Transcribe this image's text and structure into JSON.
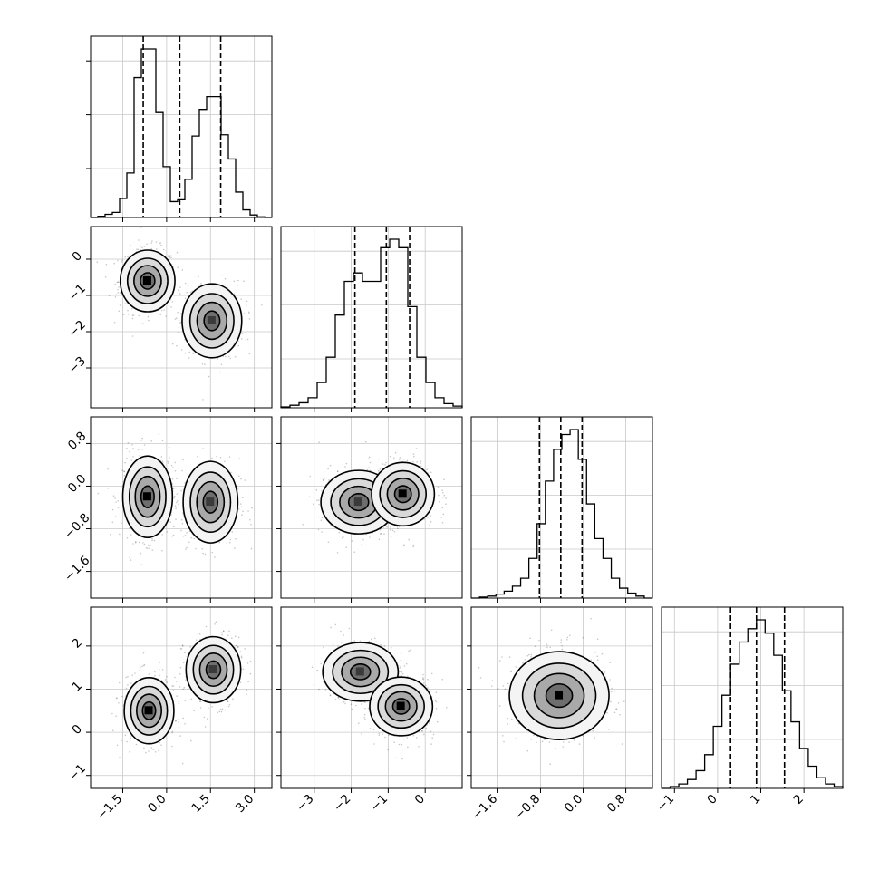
{
  "chart_data": [
    {
      "type": "histogram",
      "panel": "diag-0",
      "x_ticks": [
        "-1.5",
        "0.0",
        "1.5",
        "3.0"
      ],
      "xlim": [
        -2.6,
        3.6
      ],
      "quantiles": [
        -0.8,
        0.45,
        1.85
      ],
      "bins_x": [
        -2.6,
        3.6
      ],
      "counts": [
        0,
        2,
        5,
        8,
        30,
        70,
        220,
        265,
        265,
        165,
        80,
        25,
        28,
        60,
        128,
        170,
        190,
        190,
        130,
        92,
        40,
        12,
        4,
        1,
        0
      ]
    },
    {
      "type": "scatter",
      "panel": "x0-vs-x1",
      "x_ticks": [
        "-1.5",
        "0.0",
        "1.5",
        "3.0"
      ],
      "y_ticks": [
        "0",
        "-1",
        "-2",
        "-3"
      ],
      "xlim": [
        -2.6,
        3.6
      ],
      "ylim": [
        -4.1,
        0.9
      ],
      "clusters": [
        {
          "center": [
            -0.65,
            -0.6
          ],
          "spread": [
            0.55,
            0.5
          ],
          "density": "high"
        },
        {
          "center": [
            1.55,
            -1.7
          ],
          "spread": [
            0.6,
            0.6
          ],
          "density": "medium"
        }
      ]
    },
    {
      "type": "histogram",
      "panel": "diag-1",
      "x_ticks": [
        "-3",
        "-2",
        "-1",
        "0"
      ],
      "xlim": [
        -3.9,
        1.0
      ],
      "quantiles": [
        -1.9,
        -1.05,
        -0.42
      ],
      "counts": [
        1,
        3,
        6,
        12,
        30,
        60,
        110,
        150,
        160,
        150,
        150,
        190,
        200,
        190,
        120,
        60,
        30,
        12,
        5,
        2
      ]
    },
    {
      "type": "scatter",
      "panel": "x0-vs-x2",
      "x_ticks": [
        "-1.5",
        "0.0",
        "1.5",
        "3.0"
      ],
      "y_ticks": [
        "0.8",
        "0.0",
        "-0.8",
        "-1.6"
      ],
      "xlim": [
        -2.6,
        3.6
      ],
      "ylim": [
        -2.1,
        1.3
      ],
      "clusters": [
        {
          "center": [
            -0.65,
            -0.2
          ],
          "spread": [
            0.5,
            0.45
          ],
          "density": "high"
        },
        {
          "center": [
            1.5,
            -0.3
          ],
          "spread": [
            0.55,
            0.45
          ],
          "density": "medium"
        }
      ]
    },
    {
      "type": "scatter",
      "panel": "x1-vs-x2",
      "x_ticks": [
        "-3",
        "-2",
        "-1",
        "0"
      ],
      "y_ticks": [
        "0.8",
        "0.0",
        "-0.8",
        "-1.6"
      ],
      "xlim": [
        -3.9,
        1.0
      ],
      "ylim": [
        -2.1,
        1.3
      ],
      "clusters": [
        {
          "center": [
            -1.8,
            -0.3
          ],
          "spread": [
            0.6,
            0.35
          ],
          "density": "medium"
        },
        {
          "center": [
            -0.6,
            -0.15
          ],
          "spread": [
            0.5,
            0.35
          ],
          "density": "high"
        }
      ]
    },
    {
      "type": "histogram",
      "panel": "diag-2",
      "x_ticks": [
        "-1.6",
        "-0.8",
        "0.0",
        "0.8"
      ],
      "xlim": [
        -2.1,
        1.3
      ],
      "quantiles": [
        -0.82,
        -0.42,
        -0.02
      ],
      "counts": [
        0,
        1,
        2,
        4,
        7,
        12,
        20,
        40,
        75,
        118,
        150,
        165,
        170,
        140,
        95,
        60,
        40,
        20,
        10,
        5,
        2,
        0
      ]
    },
    {
      "type": "scatter",
      "panel": "x0-vs-x3",
      "x_ticks": [
        "-1.5",
        "0.0",
        "1.5",
        "3.0"
      ],
      "y_ticks": [
        "2",
        "1",
        "0",
        "-1"
      ],
      "xlim": [
        -2.6,
        3.6
      ],
      "ylim": [
        -1.3,
        2.9
      ],
      "clusters": [
        {
          "center": [
            -0.6,
            0.5
          ],
          "spread": [
            0.5,
            0.45
          ],
          "density": "high"
        },
        {
          "center": [
            1.6,
            1.45
          ],
          "spread": [
            0.55,
            0.45
          ],
          "density": "medium"
        }
      ]
    },
    {
      "type": "scatter",
      "panel": "x1-vs-x3",
      "x_ticks": [
        "-3",
        "-2",
        "-1",
        "0"
      ],
      "y_ticks": [
        "2",
        "1",
        "0",
        "-1"
      ],
      "xlim": [
        -3.9,
        1.0
      ],
      "ylim": [
        -1.3,
        2.9
      ],
      "clusters": [
        {
          "center": [
            -1.75,
            1.4
          ],
          "spread": [
            0.6,
            0.4
          ],
          "density": "medium"
        },
        {
          "center": [
            -0.65,
            0.6
          ],
          "spread": [
            0.5,
            0.4
          ],
          "density": "high"
        }
      ]
    },
    {
      "type": "scatter",
      "panel": "x2-vs-x3",
      "x_ticks": [
        "-1.6",
        "-0.8",
        "0.0",
        "0.8"
      ],
      "y_ticks": [
        "2",
        "1",
        "0",
        "-1"
      ],
      "xlim": [
        -2.1,
        1.3
      ],
      "ylim": [
        -1.3,
        2.9
      ],
      "clusters": [
        {
          "center": [
            -0.45,
            0.85
          ],
          "spread": [
            0.55,
            0.6
          ],
          "density": "high"
        }
      ]
    },
    {
      "type": "histogram",
      "panel": "diag-3",
      "x_ticks": [
        "-1",
        "0",
        "1",
        "2"
      ],
      "xlim": [
        -1.3,
        2.9
      ],
      "quantiles": [
        0.3,
        0.9,
        1.55
      ],
      "counts": [
        0,
        2,
        5,
        10,
        20,
        38,
        70,
        105,
        140,
        165,
        180,
        190,
        175,
        150,
        110,
        75,
        45,
        25,
        12,
        5,
        2
      ]
    }
  ]
}
